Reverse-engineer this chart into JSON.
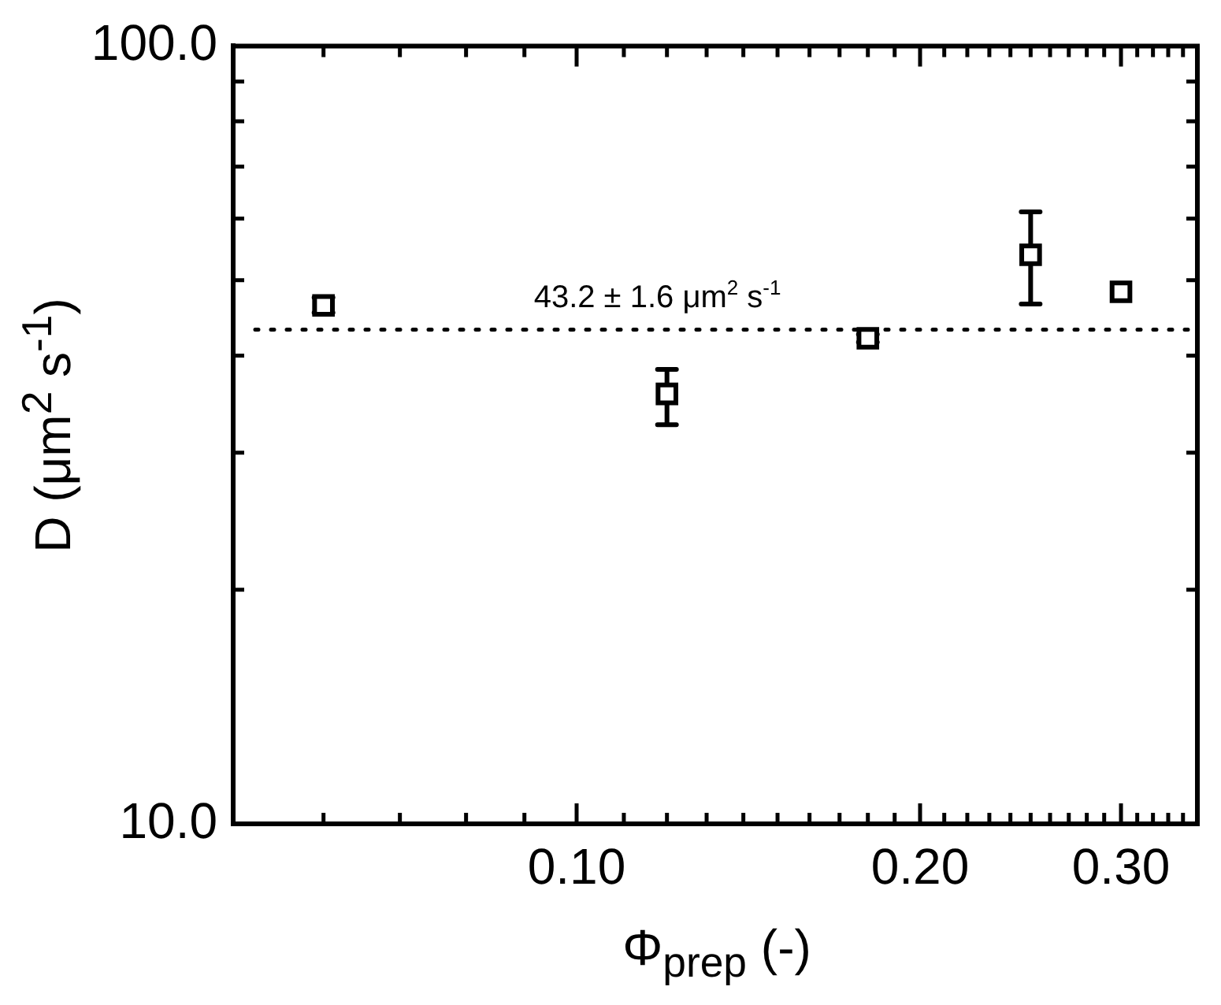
{
  "chart_data": {
    "type": "scatter",
    "xlabel": "Φ$_{prep}$ (-)",
    "ylabel": "D (μm$^{2}$ s$^{-1}$)",
    "log": "xy",
    "marker": "square",
    "legend": false,
    "grid": false,
    "xlim": [
      0.05,
      0.35
    ],
    "ylim": [
      10,
      100
    ],
    "xticks": [
      {
        "value": 0.06,
        "label": null
      },
      {
        "value": 0.07,
        "label": null
      },
      {
        "value": 0.08,
        "label": null
      },
      {
        "value": 0.09,
        "label": null
      },
      {
        "value": 0.1,
        "label": "0.10"
      },
      {
        "value": 0.11,
        "label": null
      },
      {
        "value": 0.12,
        "label": null
      },
      {
        "value": 0.13,
        "label": null
      },
      {
        "value": 0.14,
        "label": null
      },
      {
        "value": 0.15,
        "label": null
      },
      {
        "value": 0.16,
        "label": null
      },
      {
        "value": 0.17,
        "label": null
      },
      {
        "value": 0.18,
        "label": null
      },
      {
        "value": 0.19,
        "label": null
      },
      {
        "value": 0.2,
        "label": "0.20"
      },
      {
        "value": 0.21,
        "label": null
      },
      {
        "value": 0.22,
        "label": null
      },
      {
        "value": 0.23,
        "label": null
      },
      {
        "value": 0.24,
        "label": null
      },
      {
        "value": 0.25,
        "label": null
      },
      {
        "value": 0.26,
        "label": null
      },
      {
        "value": 0.27,
        "label": null
      },
      {
        "value": 0.28,
        "label": null
      },
      {
        "value": 0.29,
        "label": null
      },
      {
        "value": 0.3,
        "label": "0.30"
      },
      {
        "value": 0.31,
        "label": null
      },
      {
        "value": 0.32,
        "label": null
      },
      {
        "value": 0.33,
        "label": null
      },
      {
        "value": 0.34,
        "label": null
      }
    ],
    "yticks": [
      {
        "value": 10,
        "label": "10.0"
      },
      {
        "value": 20,
        "label": null
      },
      {
        "value": 30,
        "label": null
      },
      {
        "value": 40,
        "label": null
      },
      {
        "value": 50,
        "label": null
      },
      {
        "value": 60,
        "label": null
      },
      {
        "value": 70,
        "label": null
      },
      {
        "value": 80,
        "label": null
      },
      {
        "value": 90,
        "label": null
      },
      {
        "value": 100,
        "label": "100.0"
      }
    ],
    "series": [
      {
        "color": "#000000",
        "x": [
          0.06,
          0.12,
          0.18,
          0.25,
          0.3
        ],
        "values": [
          46.4,
          35.7,
          42.1,
          53.9,
          48.3
        ],
        "errors": [
          [
            45.4,
            47.5
          ],
          [
            32.6,
            38.4
          ],
          [
            41.6,
            42.6
          ],
          [
            46.6,
            61.2
          ],
          null
        ]
      }
    ],
    "ref_lines": [
      {
        "axis": "y",
        "value": 43.2,
        "label": "43.2 ± 1.6 μm$^{2}$ s$^{-1}$",
        "line_style": "dotted",
        "color": "#000000"
      }
    ]
  }
}
